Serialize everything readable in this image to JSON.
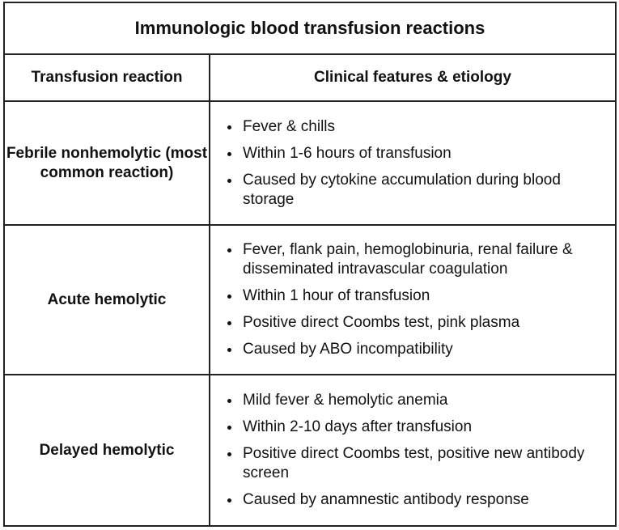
{
  "title": "Immunologic blood transfusion reactions",
  "columns": [
    "Transfusion reaction",
    "Clinical features & etiology"
  ],
  "rows": [
    {
      "name": "Febrile nonhemolytic (most common reaction)",
      "features": [
        "Fever & chills",
        "Within 1-6 hours of transfusion",
        "Caused by cytokine accumulation during blood storage"
      ]
    },
    {
      "name": "Acute hemolytic",
      "features": [
        "Fever, flank pain, hemoglobinuria, renal failure & disseminated intravascular coagulation",
        "Within 1 hour of transfusion",
        "Positive direct Coombs test, pink plasma",
        "Caused by ABO incompatibility"
      ]
    },
    {
      "name": "Delayed hemolytic",
      "features": [
        "Mild fever & hemolytic anemia",
        "Within 2-10 days after transfusion",
        "Positive direct Coombs test, positive new antibody screen",
        "Caused by anamnestic antibody response"
      ]
    }
  ]
}
